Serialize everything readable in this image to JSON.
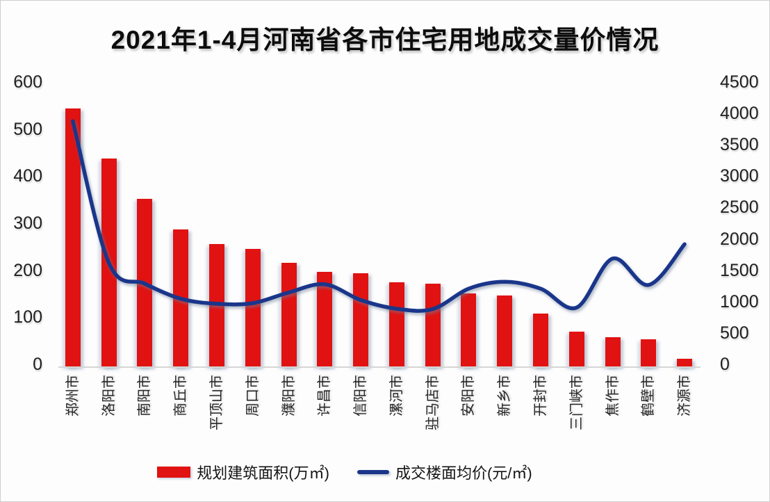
{
  "title": "2021年1-4月河南省各市住宅用地成交量价情况",
  "colors": {
    "bar": "#e01212",
    "line": "#1a368a",
    "axis_line": "#d5d5d5",
    "background": "#fdfdfe",
    "text": "#1a1a1a"
  },
  "legend": {
    "items": [
      {
        "label": "规划建筑面积(万㎡)",
        "swatch": "bar-swatch"
      },
      {
        "label": "成交楼面均价(元/㎡)",
        "swatch": "line-swatch"
      }
    ]
  },
  "chart_data": {
    "type": "combo-bar-line",
    "title": "2021年1-4月河南省各市住宅用地成交量价情况",
    "categories": [
      "郑州市",
      "洛阳市",
      "南阳市",
      "商丘市",
      "平顶山市",
      "周口市",
      "濮阳市",
      "许昌市",
      "信阳市",
      "漯河市",
      "驻马店市",
      "安阳市",
      "新乡市",
      "开封市",
      "三门峡市",
      "焦作市",
      "鹤壁市",
      "济源市"
    ],
    "series": [
      {
        "name": "规划建筑面积(万㎡)",
        "type": "bar",
        "axis": "left",
        "color": "#e01212",
        "values": [
          550,
          443,
          358,
          292,
          262,
          251,
          221,
          203,
          199,
          181,
          177,
          157,
          152,
          114,
          76,
          64,
          59,
          18
        ]
      },
      {
        "name": "成交楼面均价(元/㎡)",
        "type": "line",
        "axis": "right",
        "color": "#1a368a",
        "smooth": true,
        "values": [
          3920,
          1660,
          1330,
          1090,
          1010,
          1020,
          1190,
          1320,
          1070,
          930,
          925,
          1250,
          1360,
          1250,
          950,
          1730,
          1310,
          1960
        ]
      }
    ],
    "left_axis": {
      "min": 0,
      "max": 600,
      "step": 100,
      "tick_labels": [
        "600",
        "500",
        "400",
        "300",
        "200",
        "100",
        "0"
      ]
    },
    "right_axis": {
      "min": 0,
      "max": 4500,
      "step": 500,
      "tick_labels": [
        "4500",
        "4000",
        "3500",
        "3000",
        "2500",
        "2000",
        "1500",
        "1000",
        "500",
        "0"
      ]
    },
    "grid": false,
    "legend_position": "bottom",
    "x_label_rotation": -90
  }
}
